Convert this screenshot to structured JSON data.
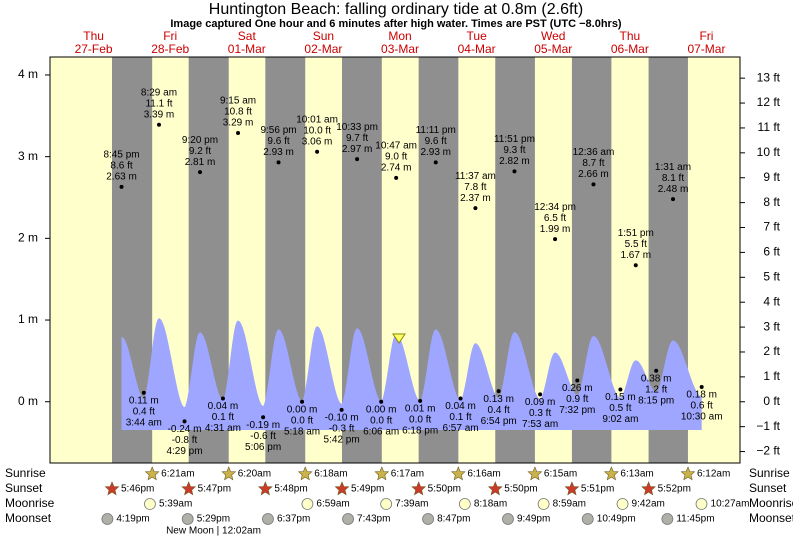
{
  "chart_data": {
    "type": "tide",
    "title": "Huntington Beach: falling  ordinary tide at 0.8m (2.6ft)",
    "subtitle": "Image captured One hour and 6 minutes after high water. Times are PST (UTC −8.0hrs)",
    "days": [
      "Thu",
      "Fri",
      "Sat",
      "Sun",
      "Mon",
      "Tue",
      "Wed",
      "Thu",
      "Fri"
    ],
    "dates": [
      "27-Feb",
      "28-Feb",
      "01-Mar",
      "02-Mar",
      "03-Mar",
      "04-Mar",
      "05-Mar",
      "06-Mar",
      "07-Mar"
    ],
    "ylim": [
      -0.75,
      4.22
    ],
    "yticks": [
      {
        "value": 0,
        "label": "0 m"
      },
      {
        "value": 1,
        "label": "1 m"
      },
      {
        "value": 2,
        "label": "2 m"
      },
      {
        "value": 3,
        "label": "3 m"
      },
      {
        "value": 4,
        "label": "4 m"
      }
    ],
    "y2lim": [
      -2.46,
      13.85
    ],
    "y2ticks": [
      {
        "value": -2,
        "label": "−2 ft"
      },
      {
        "value": -1,
        "label": "−1 ft"
      },
      {
        "value": 0,
        "label": "0 ft"
      },
      {
        "value": 1,
        "label": "1 ft"
      },
      {
        "value": 2,
        "label": "2 ft"
      },
      {
        "value": 3,
        "label": "3 ft"
      },
      {
        "value": 4,
        "label": "4 ft"
      },
      {
        "value": 5,
        "label": "5 ft"
      },
      {
        "value": 6,
        "label": "6 ft"
      },
      {
        "value": 7,
        "label": "7 ft"
      },
      {
        "value": 8,
        "label": "8 ft"
      },
      {
        "value": 9,
        "label": "9 ft"
      },
      {
        "value": 10,
        "label": "10 ft"
      },
      {
        "value": 11,
        "label": "11 ft"
      },
      {
        "value": 12,
        "label": "12 ft"
      },
      {
        "value": 13,
        "label": "13 ft"
      }
    ],
    "color": "#9ea6ff",
    "extremes": {
      "times": [
        "8:45 pm",
        "3:44 am",
        "8:29 am",
        "4:29 pm",
        "9:20 pm",
        "4:31 am",
        "9:15 am",
        "5:06 pm",
        "9:56 pm",
        "5:18 am",
        "10:01 am",
        "5:42 pm",
        "10:33 pm",
        "6:06 am",
        "10:47 am",
        "6:18 pm",
        "11:11 pm",
        "6:57 am",
        "11:37 am",
        "6:54 pm",
        "11:51 pm",
        "7:53 am",
        "12:34 pm",
        "7:32 pm",
        "12:36 am",
        "9:02 am",
        "1:51 pm",
        "8:15 pm",
        "1:31 am",
        "10:30 am"
      ],
      "values": [
        2.63,
        0.11,
        3.39,
        -0.24,
        2.81,
        0.04,
        3.29,
        -0.19,
        2.93,
        0,
        3.06,
        -0.1,
        2.97,
        0,
        2.74,
        0.01,
        2.93,
        0.04,
        2.37,
        0.13,
        2.82,
        0.09,
        1.99,
        0.26,
        2.66,
        0.15,
        1.67,
        0.38,
        2.48,
        0.18
      ],
      "value_labels": [
        "2.63 m",
        "0.11 m",
        "3.39 m",
        "-0.24 m",
        "2.81 m",
        "0.04 m",
        "3.29 m",
        "-0.19 m",
        "2.93 m",
        "0.00 m",
        "3.06 m",
        "-0.10 m",
        "2.97 m",
        "0.00 m",
        "2.74 m",
        "0.01 m",
        "2.93 m",
        "0.04 m",
        "2.37 m",
        "0.13 m",
        "2.82 m",
        "0.09 m",
        "1.99 m",
        "0.26 m",
        "2.66 m",
        "0.15 m",
        "1.67 m",
        "0.38 m",
        "2.48 m",
        "0.18 m"
      ],
      "ft": [
        8.6,
        0.4,
        11.1,
        -0.8,
        9.2,
        0.1,
        10.8,
        -0.6,
        9.6,
        0,
        10,
        -0.3,
        9.7,
        0,
        9,
        0,
        9.6,
        0.1,
        7.8,
        0.4,
        9.3,
        0.3,
        6.5,
        0.9,
        8.7,
        0.5,
        5.5,
        1.2,
        8.1,
        0.6
      ],
      "ft_labels": [
        "8.6 ft",
        "0.4 ft",
        "11.1 ft",
        "-0.8 ft",
        "9.2 ft",
        "0.1 ft",
        "10.8 ft",
        "-0.6 ft",
        "9.6 ft",
        "0.0 ft",
        "10.0 ft",
        "-0.3 ft",
        "9.7 ft",
        "0.0 ft",
        "9.0 ft",
        "0.0 ft",
        "9.6 ft",
        "0.1 ft",
        "7.8 ft",
        "0.4 ft",
        "9.3 ft",
        "0.3 ft",
        "6.5 ft",
        "0.9 ft",
        "8.7 ft",
        "0.5 ft",
        "5.5 ft",
        "1.2 ft",
        "8.1 ft",
        "0.6 ft"
      ]
    }
  },
  "almanac": {
    "sunrise": {
      "label": "Sunrise",
      "times": [
        "6:21am",
        "6:20am",
        "6:18am",
        "6:17am",
        "6:16am",
        "6:15am",
        "6:13am",
        "6:12am"
      ]
    },
    "sunset": {
      "label": "Sunset",
      "times": [
        "5:46pm",
        "5:47pm",
        "5:48pm",
        "5:49pm",
        "5:50pm",
        "5:50pm",
        "5:51pm",
        "5:52pm"
      ]
    },
    "moonrise": {
      "label": "Moonrise",
      "times": [
        "5:39am",
        "6:59am",
        "7:39am",
        "8:18am",
        "8:59am",
        "9:42am",
        "10:27am"
      ]
    },
    "moonset": {
      "label": "Moonset",
      "times": [
        "4:19pm",
        "5:29pm",
        "6:37pm",
        "7:43pm",
        "8:47pm",
        "9:49pm",
        "10:49pm",
        "11:45pm"
      ]
    },
    "new_moon": "New Moon | 12:02am"
  }
}
